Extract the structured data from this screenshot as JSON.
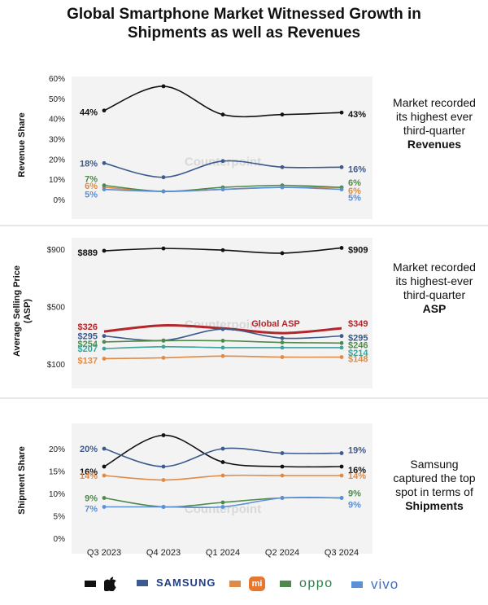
{
  "title": {
    "line1": "Global Smartphone Market Witnessed Growth in",
    "line2": "Shipments as well as Revenues"
  },
  "watermark": "Counterpoint",
  "chart_data": [
    {
      "type": "line",
      "ylabel": "Revenue Share",
      "x": [
        "Q3 2023",
        "Q4 2023",
        "Q1 2024",
        "Q2 2024",
        "Q3 2024"
      ],
      "ylim": [
        0,
        60
      ],
      "yticks": [
        "0%",
        "10%",
        "20%",
        "30%",
        "40%",
        "50%",
        "60%"
      ],
      "grid": false,
      "series": [
        {
          "brand": "Apple",
          "color": "#111111",
          "values": [
            44,
            56,
            42,
            42,
            43
          ],
          "label_first": "44%",
          "label_last": "43%"
        },
        {
          "brand": "Samsung",
          "color": "#3d5a8c",
          "values": [
            18,
            11,
            19,
            16,
            16
          ],
          "label_first": "18%",
          "label_last": "16%"
        },
        {
          "brand": "Xiaomi",
          "color": "#e08a46",
          "values": [
            6,
            4,
            5,
            6,
            6
          ],
          "label_first": "6%",
          "label_last": "6%"
        },
        {
          "brand": "OPPO",
          "color": "#4f8a4a",
          "values": [
            7,
            4,
            6,
            7,
            6
          ],
          "label_first": "7%",
          "label_last": "6%"
        },
        {
          "brand": "vivo",
          "color": "#5b8fd6",
          "values": [
            5,
            4,
            5,
            6,
            5
          ],
          "label_first": "5%",
          "label_last": "5%"
        }
      ],
      "note": {
        "text": "Market recorded its highest ever third-quarter",
        "bold": "Revenues"
      }
    },
    {
      "type": "line",
      "ylabel": "Average Selling Price (ASP)",
      "x": [
        "Q3 2023",
        "Q4 2023",
        "Q1 2024",
        "Q2 2024",
        "Q3 2024"
      ],
      "ylim": [
        100,
        900
      ],
      "yticks": [
        "$100",
        "$500",
        "$900"
      ],
      "grid": false,
      "series": [
        {
          "brand": "Apple",
          "color": "#111111",
          "values": [
            889,
            905,
            893,
            872,
            909
          ],
          "label_first": "$889",
          "label_last": "$909"
        },
        {
          "brand": "Global ASP",
          "color": "#b3262b",
          "values": [
            326,
            369,
            348,
            315,
            349
          ],
          "label_first": "$326",
          "label_last": "$349",
          "name_label": "Global ASP"
        },
        {
          "brand": "Samsung",
          "color": "#3d5a8c",
          "values": [
            295,
            264,
            343,
            280,
            295
          ],
          "label_first": "$295",
          "label_last": "$295"
        },
        {
          "brand": "OPPO",
          "color": "#4f8a4a",
          "values": [
            254,
            262,
            262,
            250,
            246
          ],
          "label_first": "$254",
          "label_last": "$246"
        },
        {
          "brand": "vivo",
          "color": "#3ba39a",
          "values": [
            207,
            220,
            214,
            214,
            214
          ],
          "label_first": "$207",
          "label_last": "$214"
        },
        {
          "brand": "Xiaomi",
          "color": "#e08a46",
          "values": [
            137,
            143,
            155,
            148,
            148
          ],
          "label_first": "$137",
          "label_last": "$148"
        }
      ],
      "note": {
        "text": "Market recorded its highest-ever third-quarter",
        "bold": "ASP"
      }
    },
    {
      "type": "line",
      "ylabel": "Shipment Share",
      "x": [
        "Q3 2023",
        "Q4 2023",
        "Q1 2024",
        "Q2 2024",
        "Q3 2024"
      ],
      "ylim": [
        0,
        20
      ],
      "yticks": [
        "0%",
        "5%",
        "10%",
        "15%",
        "20%"
      ],
      "grid": false,
      "series": [
        {
          "brand": "Apple",
          "color": "#111111",
          "values": [
            16,
            23,
            17,
            16,
            16
          ],
          "label_first": "16%",
          "label_last": "16%"
        },
        {
          "brand": "Samsung",
          "color": "#3d5a8c",
          "values": [
            20,
            16,
            20,
            19,
            19
          ],
          "label_first": "20%",
          "label_last": "19%"
        },
        {
          "brand": "Xiaomi",
          "color": "#e08a46",
          "values": [
            14,
            13,
            14,
            14,
            14
          ],
          "label_first": "14%",
          "label_last": "14%"
        },
        {
          "brand": "OPPO",
          "color": "#4f8a4a",
          "values": [
            9,
            7,
            8,
            9,
            9
          ],
          "label_first": "9%",
          "label_last": "9%"
        },
        {
          "brand": "vivo",
          "color": "#5b8fd6",
          "values": [
            7,
            7,
            7,
            9,
            9
          ],
          "label_first": "7%",
          "label_last": "9%"
        }
      ],
      "note": {
        "text": "Samsung captured the top spot in terms of",
        "bold": "Shipments"
      }
    }
  ],
  "legend": [
    {
      "brand": "Apple",
      "label": "",
      "icon": "apple-logo-icon",
      "color": "#111111"
    },
    {
      "brand": "Samsung",
      "label": "SAMSUNG",
      "color": "#3d5a8c"
    },
    {
      "brand": "Xiaomi",
      "label": "mi",
      "icon": "xiaomi-logo-icon",
      "color": "#e08a46"
    },
    {
      "brand": "OPPO",
      "label": "oppo",
      "color": "#4f8a4a"
    },
    {
      "brand": "vivo",
      "label": "vivo",
      "color": "#5b8fd6"
    }
  ]
}
